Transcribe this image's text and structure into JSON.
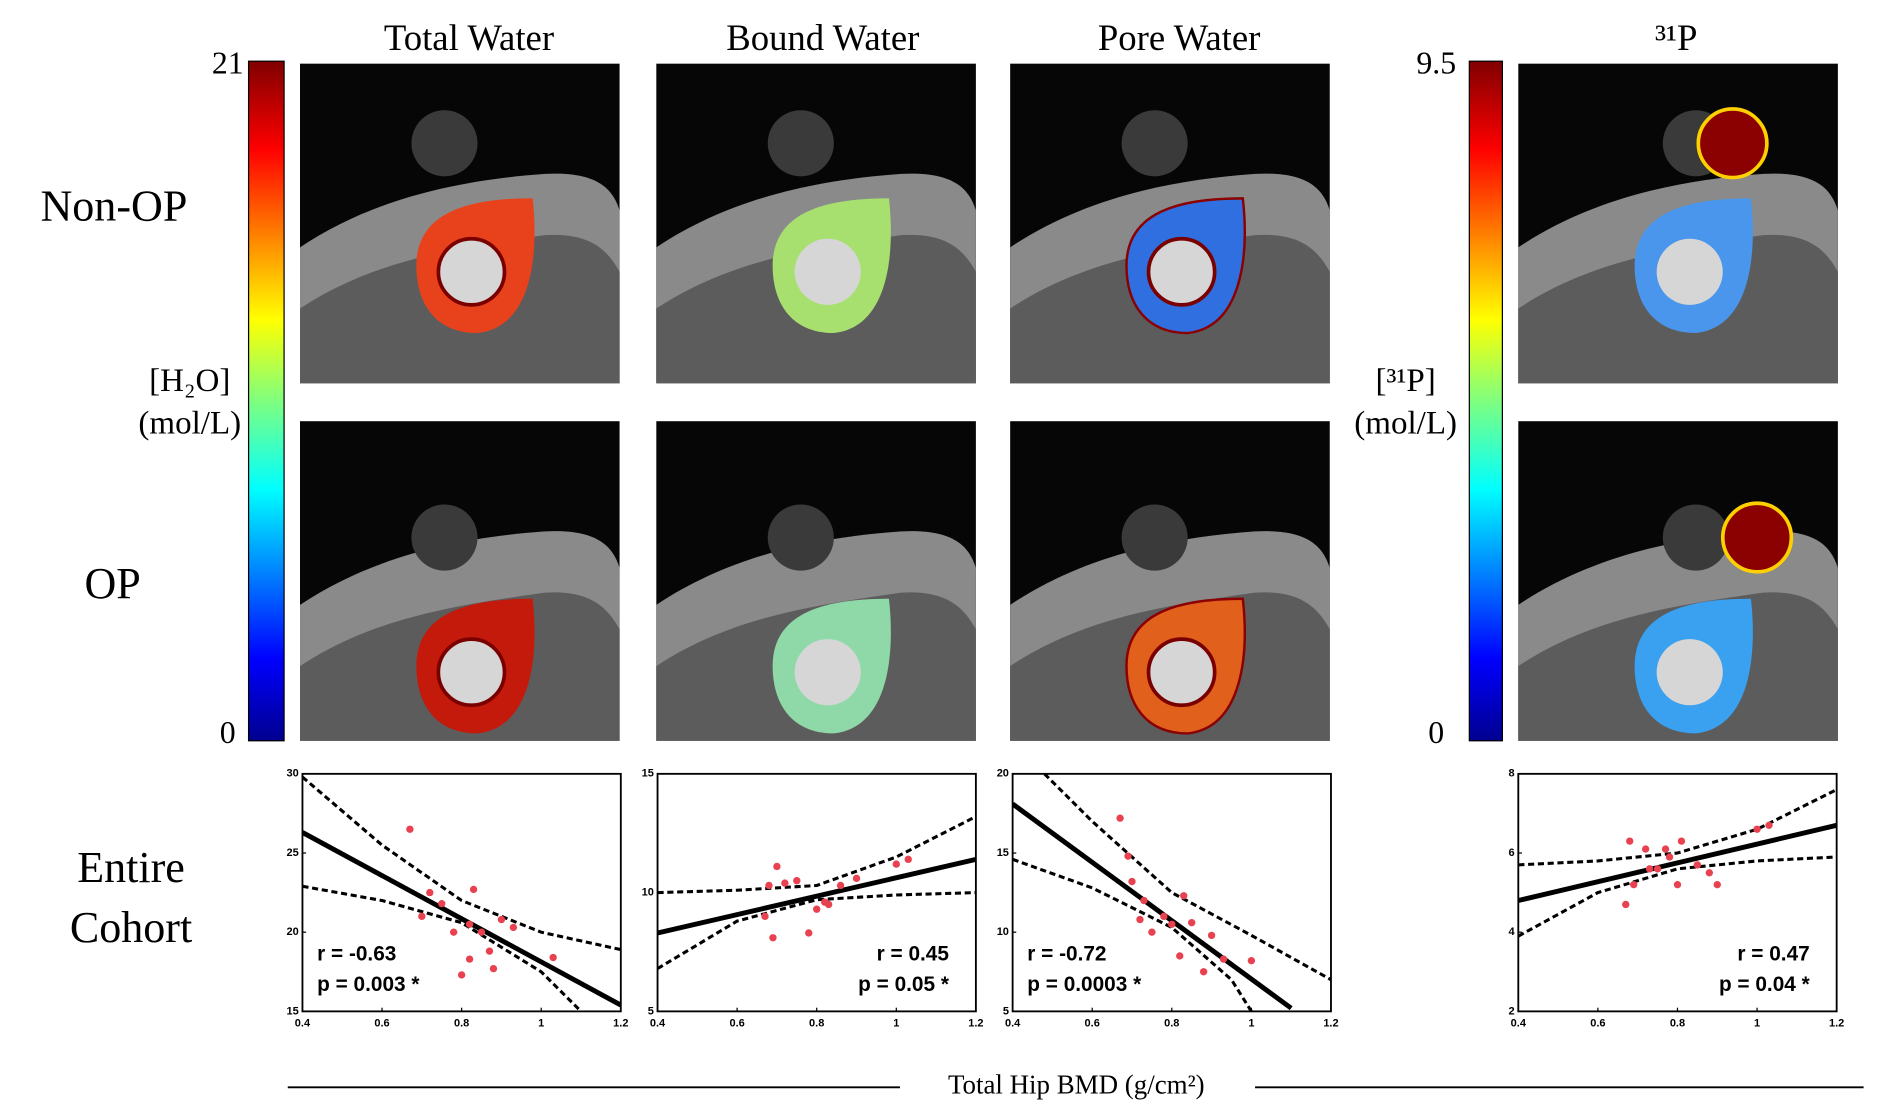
{
  "figure": {
    "columns": [
      "Total Water",
      "Bound Water",
      "Pore Water",
      "³¹P"
    ],
    "row_labels": [
      "Non-OP",
      "OP"
    ],
    "cohort_label": [
      "Entire",
      "Cohort"
    ],
    "colorbars": [
      {
        "ticks": [
          0,
          21
        ],
        "label": [
          "[H₂O]",
          "(mol/L)"
        ]
      },
      {
        "ticks": [
          0,
          9.5
        ],
        "label": [
          "[³¹P]",
          "(mol/L)"
        ]
      }
    ],
    "xlabel": "Total Hip BMD (g/cm²)"
  },
  "chart_data": [
    {
      "type": "scatter",
      "color": "#e8414f",
      "x": [
        0.67,
        0.7,
        0.72,
        0.75,
        0.78,
        0.8,
        0.82,
        0.83,
        0.85,
        0.87,
        0.88,
        0.9,
        0.93,
        1.03,
        0.82
      ],
      "values": [
        26.5,
        21,
        22.5,
        21.8,
        20,
        17.3,
        18.3,
        22.7,
        20,
        18.8,
        17.7,
        20.8,
        20.3,
        18.4,
        20.5
      ],
      "lines": [
        {
          "style": "solid",
          "x": [
            0.4,
            1.2
          ],
          "values": [
            26.3,
            15.4
          ]
        },
        {
          "style": "dashed",
          "x": [
            0.4,
            0.6,
            0.8,
            1.0,
            1.2
          ],
          "values": [
            29.8,
            25.5,
            22,
            20,
            18.9
          ]
        },
        {
          "style": "dashed",
          "x": [
            0.4,
            0.6,
            0.8,
            1.0,
            1.1
          ],
          "values": [
            22.9,
            22,
            20.6,
            17.5,
            15
          ]
        }
      ],
      "annotations": [
        "r = -0.63",
        "p = 0.003 *"
      ],
      "xlim": [
        0.4,
        1.2
      ],
      "xticks": [
        0.4,
        0.6,
        0.8,
        1,
        1.2
      ],
      "ylim": [
        15,
        30
      ],
      "yticks": [
        15,
        20,
        25,
        30
      ]
    },
    {
      "type": "scatter",
      "color": "#e8414f",
      "x": [
        0.67,
        0.68,
        0.69,
        0.7,
        0.72,
        0.75,
        0.78,
        0.8,
        0.82,
        0.83,
        0.86,
        0.9,
        1.0,
        1.03
      ],
      "values": [
        9,
        10.3,
        8.1,
        11.1,
        10.4,
        10.5,
        8.3,
        9.3,
        9.6,
        9.5,
        10.3,
        10.6,
        11.2,
        11.4
      ],
      "lines": [
        {
          "style": "solid",
          "x": [
            0.4,
            1.2
          ],
          "values": [
            8.3,
            11.4
          ]
        },
        {
          "style": "dashed",
          "x": [
            0.4,
            0.6,
            0.8,
            1.0,
            1.2
          ],
          "values": [
            10,
            10.1,
            10.3,
            11.5,
            13.2
          ]
        },
        {
          "style": "dashed",
          "x": [
            0.4,
            0.6,
            0.8,
            1.0,
            1.2
          ],
          "values": [
            6.8,
            8.8,
            9.7,
            9.9,
            10
          ]
        }
      ],
      "annotations": [
        "r = 0.45",
        "p = 0.05 *"
      ],
      "xlim": [
        0.4,
        1.2
      ],
      "xticks": [
        0.4,
        0.6,
        0.8,
        1,
        1.2
      ],
      "ylim": [
        5,
        15
      ],
      "yticks": [
        5,
        10,
        15
      ]
    },
    {
      "type": "scatter",
      "color": "#e8414f",
      "x": [
        0.67,
        0.69,
        0.7,
        0.72,
        0.73,
        0.75,
        0.78,
        0.8,
        0.82,
        0.83,
        0.85,
        0.88,
        0.9,
        0.93,
        1.0
      ],
      "values": [
        17.2,
        14.8,
        13.2,
        10.8,
        12,
        10,
        11,
        10.5,
        8.5,
        12.3,
        10.6,
        7.5,
        9.8,
        8.3,
        8.2
      ],
      "lines": [
        {
          "style": "solid",
          "x": [
            0.4,
            1.1
          ],
          "values": [
            18.1,
            5.2
          ]
        },
        {
          "style": "dashed",
          "x": [
            0.48,
            0.6,
            0.8,
            1.0,
            1.2
          ],
          "values": [
            20,
            17,
            12.5,
            9.8,
            7
          ]
        },
        {
          "style": "dashed",
          "x": [
            0.4,
            0.6,
            0.8,
            0.95,
            1.0
          ],
          "values": [
            14.6,
            12.8,
            10.3,
            7,
            5
          ]
        }
      ],
      "annotations": [
        "r = -0.72",
        "p = 0.0003 *"
      ],
      "xlim": [
        0.4,
        1.2
      ],
      "xticks": [
        0.4,
        0.6,
        0.8,
        1,
        1.2
      ],
      "ylim": [
        5,
        20
      ],
      "yticks": [
        5,
        10,
        15,
        20
      ]
    },
    {
      "type": "scatter",
      "color": "#e8414f",
      "x": [
        0.67,
        0.68,
        0.69,
        0.72,
        0.73,
        0.75,
        0.77,
        0.78,
        0.8,
        0.81,
        0.85,
        0.88,
        0.9,
        1.0,
        1.03
      ],
      "values": [
        4.7,
        6.3,
        5.2,
        6.1,
        5.6,
        5.6,
        6.1,
        5.9,
        5.2,
        6.3,
        5.7,
        5.5,
        5.2,
        6.6,
        6.7
      ],
      "lines": [
        {
          "style": "solid",
          "x": [
            0.4,
            1.2
          ],
          "values": [
            4.8,
            6.7
          ]
        },
        {
          "style": "dashed",
          "x": [
            0.4,
            0.6,
            0.8,
            1.0,
            1.2
          ],
          "values": [
            5.7,
            5.8,
            6.0,
            6.6,
            7.6
          ]
        },
        {
          "style": "dashed",
          "x": [
            0.4,
            0.6,
            0.8,
            1.0,
            1.2
          ],
          "values": [
            3.9,
            5.0,
            5.6,
            5.8,
            5.9
          ]
        }
      ],
      "annotations": [
        "r = 0.47",
        "p = 0.04 *"
      ],
      "xlim": [
        0.4,
        1.2
      ],
      "xticks": [
        0.4,
        0.6,
        0.8,
        1,
        1.2
      ],
      "ylim": [
        2,
        8
      ],
      "yticks": [
        2,
        4,
        6,
        8
      ]
    }
  ]
}
